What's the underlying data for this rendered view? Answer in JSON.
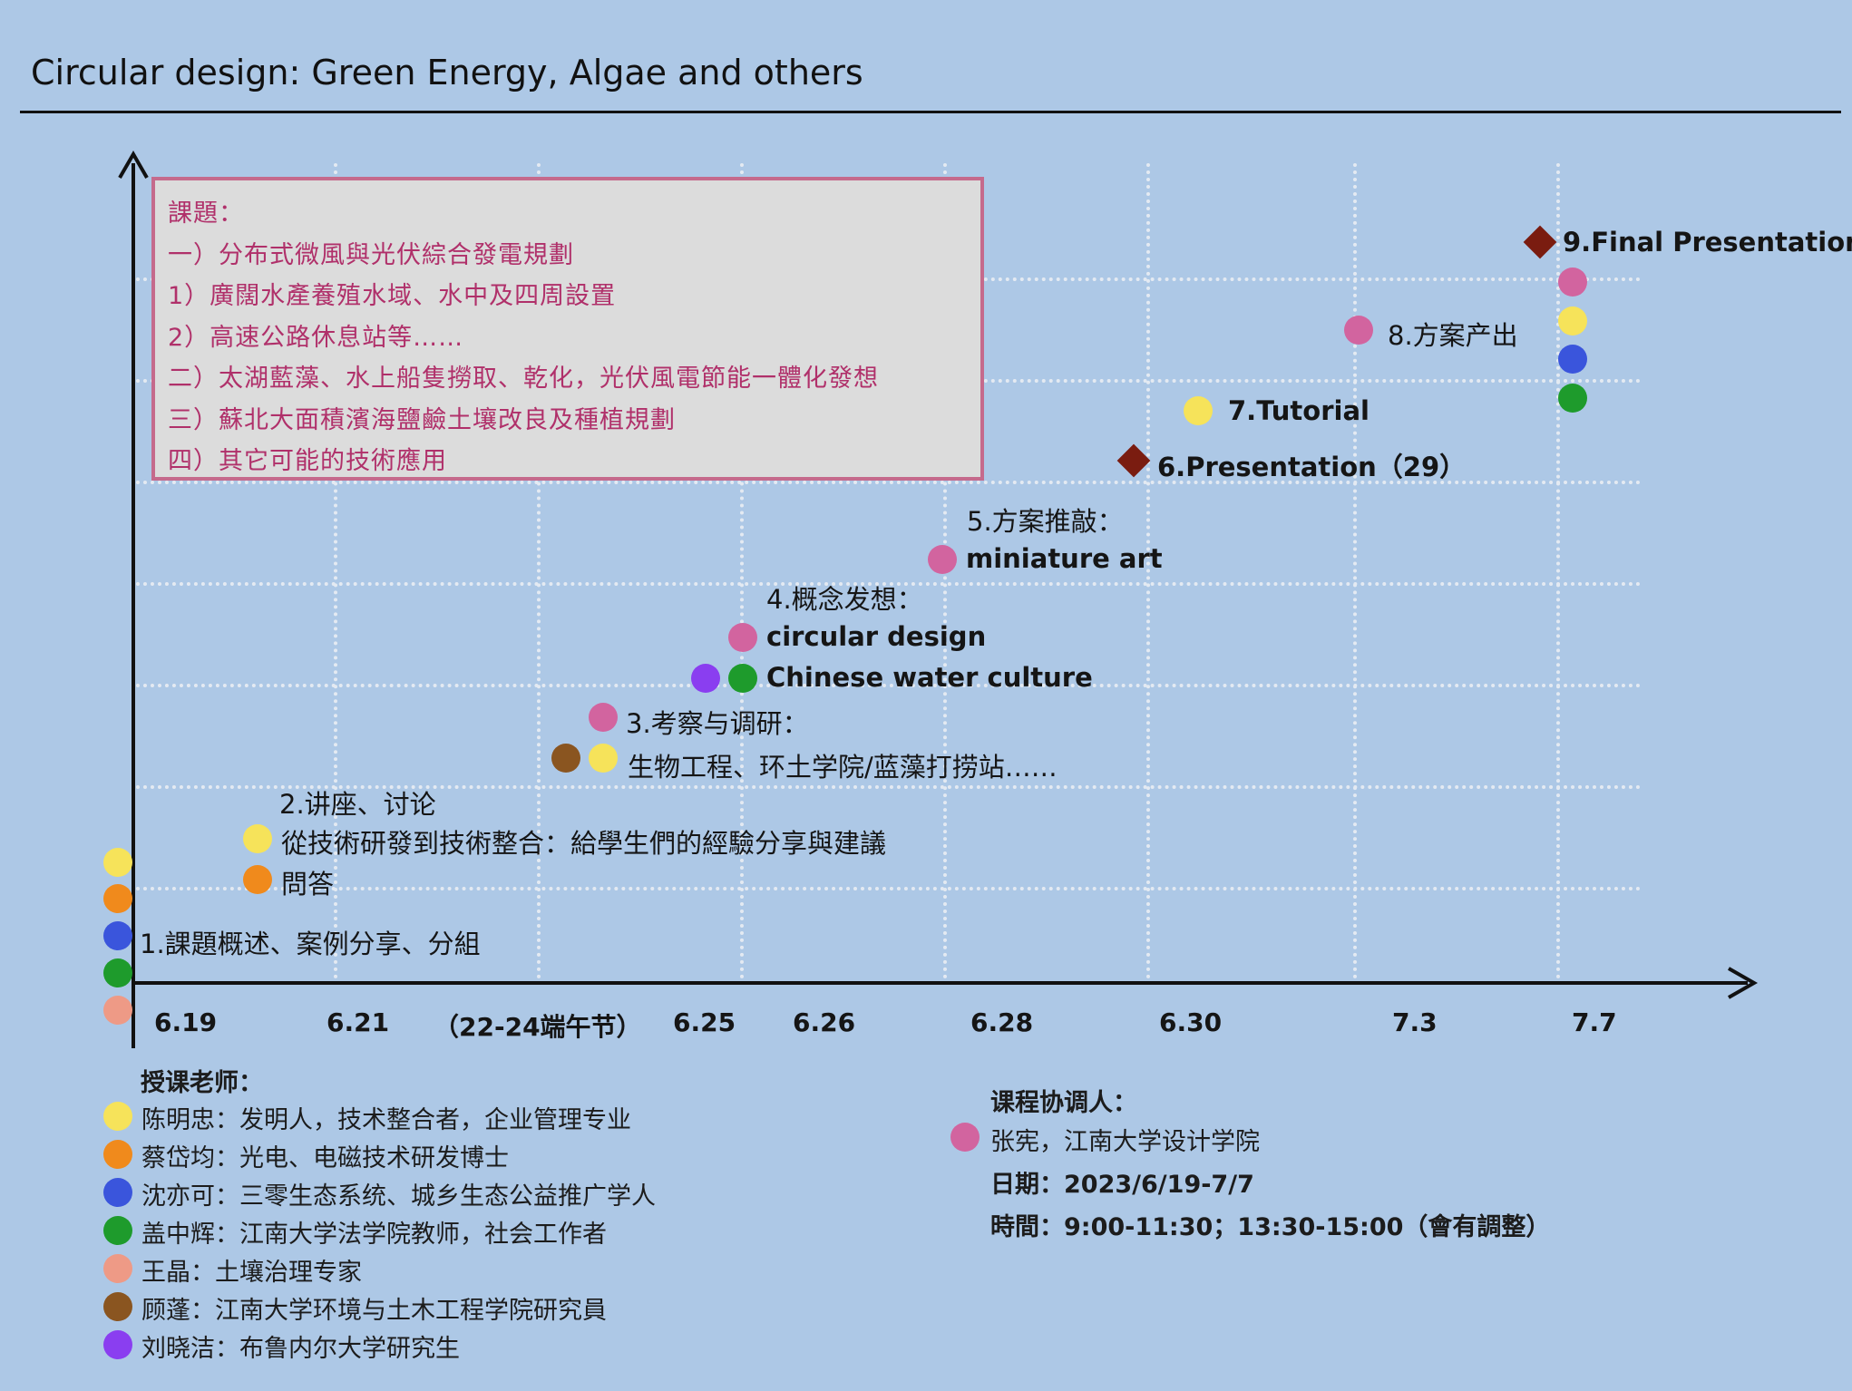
{
  "title": "Circular design: Green Energy, Algae and others",
  "colors": {
    "background": "#adc8e6",
    "yellow": "#f6e35a",
    "orange": "#f08a1c",
    "blue": "#3a55dc",
    "green": "#1e9b2c",
    "salmon": "#ee9a86",
    "brown": "#8a5520",
    "purple": "#8a3ef0",
    "pink": "#d2649f",
    "diamond": "#7a1c10",
    "topic_text": "#b0306a"
  },
  "topics": [
    "課題：",
    "一）分布式微風與光伏綜合發電規劃",
    "1）廣闊水產養殖水域、水中及四周設置",
    "2）高速公路休息站等……",
    "二）太湖藍藻、水上船隻撈取、乾化，光伏風電節能一體化發想",
    "三）蘇北大面積濱海鹽鹼土壤改良及種植規劃",
    "四）其它可能的技術應用"
  ],
  "ticks": [
    "6.19",
    "6.21",
    "（22-24端午节）",
    "6.25",
    "6.26",
    "6.28",
    "6.30",
    "7.3",
    "7.7"
  ],
  "milestones": {
    "m1": "1.課題概述、案例分享、分組",
    "m2_title": "2.讲座、讨论",
    "m2_a": "從技術研發到技術整合：給學生們的經驗分享與建議",
    "m2_b": "問答",
    "m3_title": "3.考察与调研：",
    "m3_a": "生物工程、环土学院/蓝藻打捞站……",
    "m4_title": "4.概念发想：",
    "m4_a": "circular design",
    "m4_b": "Chinese water culture",
    "m5_title": "5.方案推敲：",
    "m5_a": "miniature art",
    "m6": "6.Presentation（29）",
    "m7": "7.Tutorial",
    "m8": "8.方案产出",
    "m9": "9.Final Presentation"
  },
  "teachers_heading": "授课老师：",
  "teachers": [
    {
      "color": "yellow",
      "text": "陈明忠：发明人，技术整合者，企业管理专业"
    },
    {
      "color": "orange",
      "text": "蔡岱均：光电、电磁技术研发博士"
    },
    {
      "color": "blue",
      "text": "沈亦可：三零生态系统、城乡生态公益推广学人"
    },
    {
      "color": "green",
      "text": "盖中辉：江南大学法学院教师，社会工作者"
    },
    {
      "color": "salmon",
      "text": "王晶：土壤治理专家"
    },
    {
      "color": "brown",
      "text": "顾蓬：江南大学环境与土木工程学院研究員"
    },
    {
      "color": "purple",
      "text": "刘晓洁：布鲁内尔大学研究生"
    }
  ],
  "coordinator_heading": "课程协调人：",
  "coordinator": "张宪，江南大学设计学院",
  "date_line": "日期：2023/6/19-7/7",
  "time_line": "時間：9:00-11:30；13:30-15:00（會有調整）"
}
